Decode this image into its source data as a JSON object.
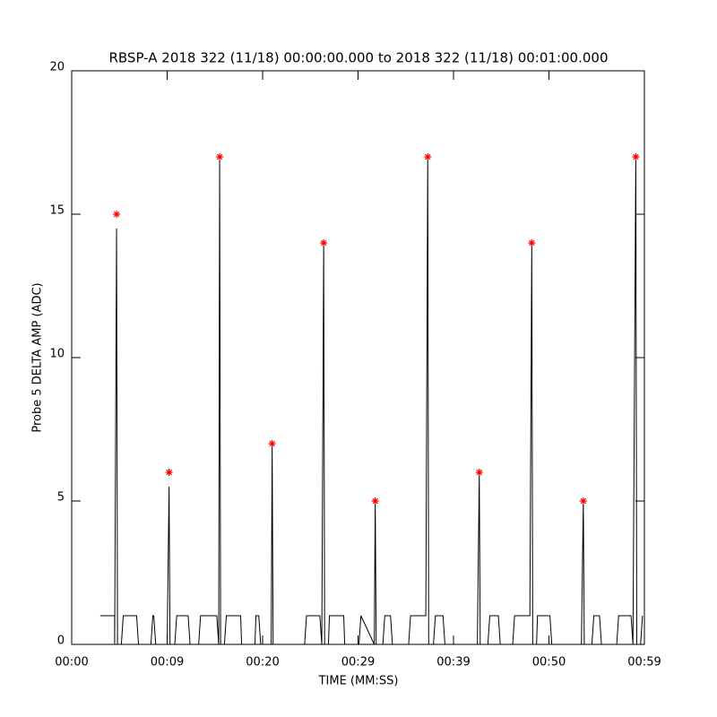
{
  "chart_data": {
    "type": "line",
    "title": "RBSP-A 2018 322 (11/18) 00:00:00.000 to 2018 322 (11/18) 00:01:00.000",
    "xlabel": "TIME (MM:SS)",
    "ylabel": "Probe 5 DELTA AMP (ADC)",
    "xlim": [
      0,
      60
    ],
    "ylim": [
      0,
      20
    ],
    "xticks": [
      {
        "value": 0,
        "label": "00:00"
      },
      {
        "value": 10,
        "label": "00:09"
      },
      {
        "value": 20,
        "label": "00:20"
      },
      {
        "value": 30,
        "label": "00:29"
      },
      {
        "value": 40,
        "label": "00:39"
      },
      {
        "value": 50,
        "label": "00:50"
      },
      {
        "value": 60,
        "label": "00:59"
      }
    ],
    "yticks": [
      0,
      5,
      10,
      15,
      20
    ],
    "series": [
      {
        "color": "#000000",
        "marker": "none",
        "x": [
          3.0,
          4.5,
          4.5,
          4.7,
          4.8,
          5.2,
          5.4,
          6.8,
          7.0,
          8.3,
          8.5,
          8.6,
          8.8,
          10.0,
          10.2,
          10.3,
          10.8,
          11.0,
          12.2,
          12.4,
          13.3,
          13.5,
          15.2,
          15.4,
          15.5,
          15.6,
          16.0,
          16.2,
          17.7,
          17.8,
          19.2,
          19.3,
          19.6,
          19.8,
          20.9,
          21.0,
          21.1,
          24.4,
          24.6,
          26.0,
          26.2,
          26.4,
          26.5,
          26.9,
          27.0,
          28.5,
          28.6,
          30.1,
          30.3,
          31.7,
          31.8,
          31.9,
          32.6,
          32.8,
          33.4,
          33.6,
          35.3,
          35.5,
          37.1,
          37.3,
          37.4,
          37.9,
          38.1,
          38.9,
          39.1,
          42.5,
          42.7,
          42.8,
          43.6,
          43.8,
          44.7,
          44.9,
          46.2,
          46.4,
          48.0,
          48.2,
          48.3,
          48.7,
          48.8,
          50.1,
          50.3,
          53.4,
          53.6,
          53.7,
          54.5,
          54.7,
          55.3,
          55.5,
          57.1,
          57.3,
          58.6,
          58.8,
          59.1,
          59.2,
          59.6,
          59.8
        ],
        "values": [
          1,
          1,
          0,
          14.5,
          0,
          0,
          1,
          1,
          0,
          0,
          1,
          1,
          0,
          0,
          5.5,
          0,
          0,
          1,
          1,
          0,
          0,
          1,
          1,
          0,
          17,
          0,
          0,
          1,
          1,
          0,
          0,
          1,
          1,
          0,
          0,
          7,
          0,
          0,
          1,
          1,
          0,
          14,
          0,
          0,
          1,
          1,
          0,
          0,
          1,
          0,
          5,
          0,
          0,
          1,
          1,
          0,
          0,
          1,
          1,
          17,
          0,
          0,
          1,
          1,
          0,
          0,
          6,
          0,
          0,
          1,
          1,
          0,
          0,
          1,
          1,
          14,
          0,
          0,
          1,
          1,
          0,
          0,
          5,
          0,
          0,
          1,
          1,
          0,
          0,
          1,
          1,
          0,
          17,
          0,
          0,
          1
        ]
      },
      {
        "color": "#ff0000",
        "marker": "asterisk",
        "x": [
          4.7,
          10.2,
          15.5,
          21.0,
          26.4,
          31.8,
          37.3,
          42.7,
          48.2,
          53.6,
          59.1
        ],
        "values": [
          15,
          6,
          17,
          7,
          14,
          5,
          17,
          6,
          14,
          5,
          17
        ]
      }
    ]
  }
}
